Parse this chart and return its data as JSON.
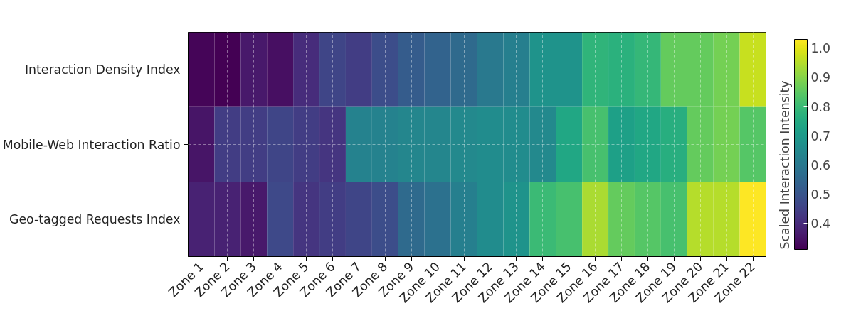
{
  "chart_data": {
    "type": "heatmap",
    "clabel": "Scaled Interaction Intensity",
    "categories": [
      "Zone 1",
      "Zone 2",
      "Zone 3",
      "Zone 4",
      "Zone 5",
      "Zone 6",
      "Zone 7",
      "Zone 8",
      "Zone 9",
      "Zone 10",
      "Zone 11",
      "Zone 12",
      "Zone 13",
      "Zone 14",
      "Zone 15",
      "Zone 16",
      "Zone 17",
      "Zone 18",
      "Zone 19",
      "Zone 20",
      "Zone 21",
      "Zone 22"
    ],
    "y_categories": [
      "Interaction Density Index",
      "Mobile-Web Interaction Ratio",
      "Geo-tagged Requests Index"
    ],
    "cells": [
      [
        0.32,
        0.31,
        0.36,
        0.34,
        0.4,
        0.46,
        0.44,
        0.48,
        0.52,
        0.54,
        0.56,
        0.6,
        0.62,
        0.68,
        0.68,
        0.78,
        0.77,
        0.79,
        0.86,
        0.86,
        0.88,
        0.97
      ],
      [
        0.35,
        0.44,
        0.44,
        0.46,
        0.44,
        0.42,
        0.63,
        0.63,
        0.64,
        0.64,
        0.65,
        0.66,
        0.66,
        0.65,
        0.74,
        0.82,
        0.72,
        0.74,
        0.76,
        0.86,
        0.88,
        0.84
      ],
      [
        0.38,
        0.38,
        0.36,
        0.47,
        0.42,
        0.44,
        0.46,
        0.48,
        0.56,
        0.58,
        0.62,
        0.66,
        0.68,
        0.8,
        0.82,
        0.94,
        0.86,
        0.84,
        0.82,
        0.95,
        0.95,
        1.03
      ]
    ],
    "clim": [
      0.31,
      1.03
    ],
    "cticks": [
      0.4,
      0.5,
      0.6,
      0.7,
      0.8,
      0.9,
      {
        "value": 1,
        "label": "1.0"
      }
    ],
    "grid": true
  }
}
